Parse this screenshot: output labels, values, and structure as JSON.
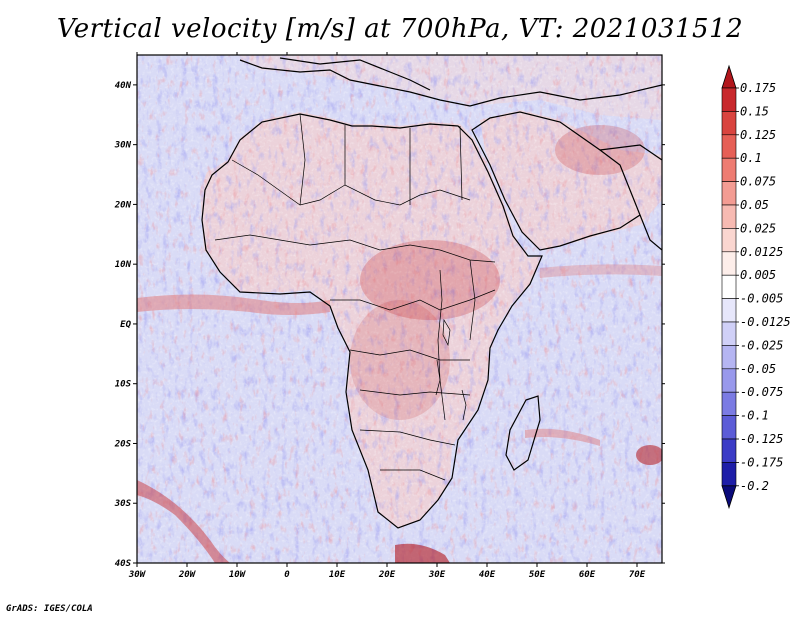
{
  "title": "Vertical velocity [m/s] at 700hPa, VT: 2021031512",
  "credit": "GrADS: IGES/COLA",
  "map": {
    "region": "Africa",
    "lon_range": [
      -30,
      75
    ],
    "lat_range": [
      -40,
      45
    ],
    "lon_ticks": [
      "30W",
      "20W",
      "10W",
      "0",
      "10E",
      "20E",
      "30E",
      "40E",
      "50E",
      "60E",
      "70E"
    ],
    "lat_ticks": [
      "40N",
      "30N",
      "20N",
      "10N",
      "EQ",
      "10S",
      "20S",
      "30S",
      "40S"
    ]
  },
  "colorbar": {
    "labels": [
      "0.175",
      "0.15",
      "0.125",
      "0.1",
      "0.075",
      "0.05",
      "0.025",
      "0.0125",
      "0.005",
      "-0.005",
      "-0.0125",
      "-0.025",
      "-0.05",
      "-0.075",
      "-0.1",
      "-0.125",
      "-0.175",
      "-0.2"
    ],
    "colors": [
      "#b2161c",
      "#c8282c",
      "#d9443f",
      "#e65f56",
      "#ee7c72",
      "#f39c93",
      "#f7bab2",
      "#fad6d0",
      "#fdeeea",
      "#ffffff",
      "#e7e7fb",
      "#d0d0f7",
      "#b5b5f2",
      "#9999ec",
      "#7b7be3",
      "#5c5cd7",
      "#3b3bc6",
      "#1e1ea8",
      "#0a0a7a"
    ]
  },
  "colors": {
    "ocean_base": "#d7d9f6",
    "land_base": "#e8d4dc",
    "coast": "#000000"
  }
}
